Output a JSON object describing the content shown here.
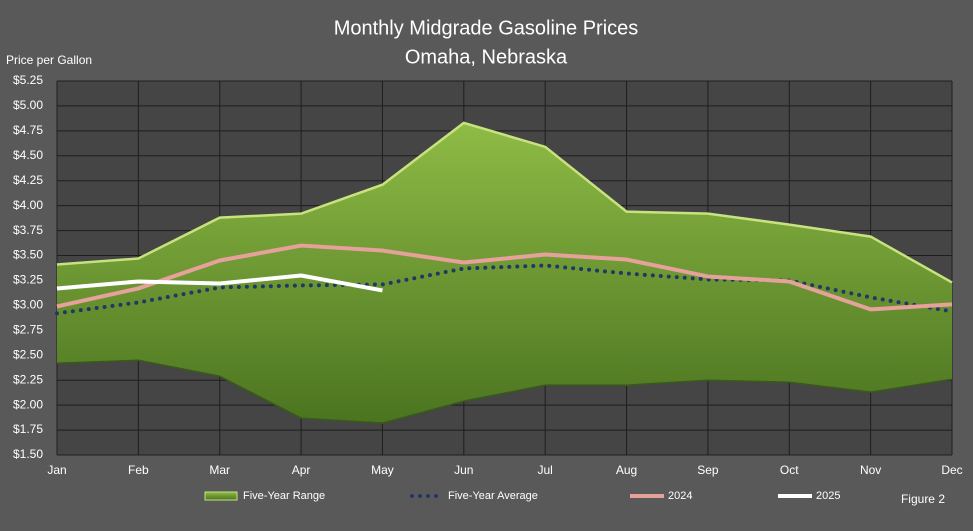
{
  "chart_data": {
    "type": "line",
    "title": "Monthly Midgrade Gasoline Prices",
    "subtitle": "Omaha, Nebraska",
    "y_label": "Price per Gallon",
    "annotation": "Figure 2",
    "categories": [
      "Jan",
      "Feb",
      "Mar",
      "Apr",
      "May",
      "Jun",
      "Jul",
      "Aug",
      "Sep",
      "Oct",
      "Nov",
      "Dec"
    ],
    "series": [
      {
        "name": "Five-Year Range",
        "type": "range",
        "color": "#8db545",
        "values": [
          3.41,
          3.47,
          3.88,
          3.92,
          4.21,
          4.83,
          4.59,
          3.94,
          3.92,
          3.81,
          3.69,
          3.23
        ],
        "lower": [
          2.42,
          2.45,
          2.29,
          1.87,
          1.82,
          2.04,
          2.2,
          2.2,
          2.25,
          2.23,
          2.13,
          2.26
        ]
      },
      {
        "name": "Five-Year Average",
        "type": "dotted",
        "color": "#1f3864",
        "values": [
          2.92,
          3.03,
          3.18,
          3.2,
          3.21,
          3.37,
          3.4,
          3.32,
          3.26,
          3.25,
          3.08,
          2.94
        ]
      },
      {
        "name": "2024",
        "type": "line",
        "color": "#e6a19b",
        "values": [
          2.99,
          3.17,
          3.45,
          3.6,
          3.55,
          3.43,
          3.51,
          3.46,
          3.29,
          3.24,
          2.96,
          3.01
        ]
      },
      {
        "name": "2025",
        "type": "line",
        "color": "#ffffff",
        "values": [
          3.17,
          3.24,
          3.22,
          3.3,
          3.15,
          null,
          null,
          null,
          null,
          null,
          null,
          null
        ]
      }
    ],
    "ylim": [
      1.5,
      5.25
    ],
    "yticks": [
      {
        "value": 1.5,
        "label": "$1.50"
      },
      {
        "value": 1.75,
        "label": "$1.75"
      },
      {
        "value": 2.0,
        "label": "$2.00"
      },
      {
        "value": 2.25,
        "label": "$2.25"
      },
      {
        "value": 2.5,
        "label": "$2.50"
      },
      {
        "value": 2.75,
        "label": "$2.75"
      },
      {
        "value": 3.0,
        "label": "$3.00"
      },
      {
        "value": 3.25,
        "label": "$3.25"
      },
      {
        "value": 3.5,
        "label": "$3.50"
      },
      {
        "value": 3.75,
        "label": "$3.75"
      },
      {
        "value": 4.0,
        "label": "$4.00"
      },
      {
        "value": 4.25,
        "label": "$4.25"
      },
      {
        "value": 4.5,
        "label": "$4.50"
      },
      {
        "value": 4.75,
        "label": "$4.75"
      },
      {
        "value": 5.0,
        "label": "$5.00"
      },
      {
        "value": 5.25,
        "label": "$5.25"
      }
    ],
    "grid": true,
    "legend": "bottom"
  }
}
